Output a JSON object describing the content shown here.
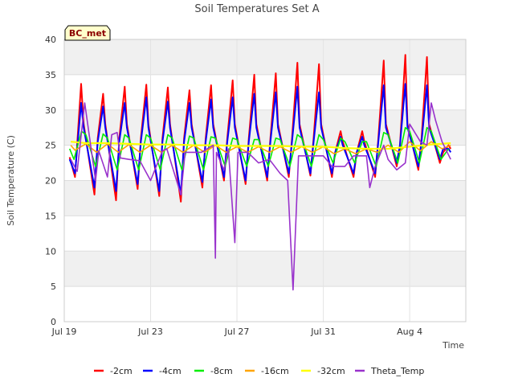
{
  "chart_data": {
    "type": "line",
    "title": "Soil Temperatures Set A",
    "xlabel": "Time",
    "ylabel": "Soil Temperature (C)",
    "badge": "BC_met",
    "x_unit": "days since Jul 19",
    "xlim": [
      0,
      18.6
    ],
    "ylim": [
      0,
      40
    ],
    "yticks": [
      0,
      5,
      10,
      15,
      20,
      25,
      30,
      35,
      40
    ],
    "xticks": [
      {
        "value": 0,
        "label": "Jul 19"
      },
      {
        "value": 4,
        "label": "Jul 23"
      },
      {
        "value": 8,
        "label": "Jul 27"
      },
      {
        "value": 12,
        "label": "Jul 31"
      },
      {
        "value": 16,
        "label": "Aug 4"
      }
    ],
    "legend_position": "bottom",
    "grid": true,
    "band_background": true,
    "series": [
      {
        "name": "-2cm",
        "color": "#ff0000",
        "width": 2.0,
        "x": [
          0.25,
          0.5,
          0.78,
          0.9,
          1.4,
          1.55,
          1.8,
          1.9,
          2.4,
          2.55,
          2.8,
          2.9,
          3.4,
          3.55,
          3.8,
          3.9,
          4.4,
          4.55,
          4.8,
          4.9,
          5.4,
          5.55,
          5.8,
          5.9,
          6.4,
          6.55,
          6.8,
          6.9,
          7.4,
          7.55,
          7.8,
          7.9,
          8.4,
          8.55,
          8.8,
          8.9,
          9.4,
          9.55,
          9.8,
          9.9,
          10.4,
          10.55,
          10.8,
          10.9,
          11.4,
          11.55,
          11.8,
          11.9,
          12.4,
          12.55,
          12.8,
          12.9,
          13.4,
          13.55,
          13.8,
          13.9,
          14.4,
          14.55,
          14.8,
          14.9,
          15.4,
          15.55,
          15.8,
          15.9,
          16.4,
          16.55,
          16.8,
          16.9,
          17.4,
          17.55,
          17.8,
          17.9
        ],
        "y": [
          23.3,
          20.5,
          33.7,
          28,
          18,
          26,
          32.3,
          28,
          17.2,
          26,
          33.3,
          28,
          18.8,
          26,
          33.6,
          28,
          17.8,
          26,
          33.2,
          28,
          17,
          26,
          32.8,
          28,
          19,
          26,
          33.5,
          28,
          20,
          26,
          34.2,
          28,
          19.5,
          26,
          35,
          28,
          20,
          26,
          35.2,
          28,
          20.5,
          26,
          36.7,
          28,
          20.7,
          26,
          36.5,
          28,
          20.5,
          24,
          27,
          25.5,
          20.5,
          24,
          27,
          25.5,
          20.5,
          26,
          37,
          28,
          22,
          25,
          37.8,
          28,
          21.5,
          26,
          37.5,
          28,
          22.5,
          24,
          25,
          24.5
        ]
      },
      {
        "name": "-4cm",
        "color": "#0000ff",
        "width": 2.0,
        "x": [
          0.25,
          0.5,
          0.78,
          0.9,
          1.4,
          1.55,
          1.8,
          1.9,
          2.4,
          2.55,
          2.8,
          2.9,
          3.4,
          3.55,
          3.8,
          3.9,
          4.4,
          4.55,
          4.8,
          4.9,
          5.4,
          5.55,
          5.8,
          5.9,
          6.4,
          6.55,
          6.8,
          6.9,
          7.4,
          7.55,
          7.8,
          7.9,
          8.4,
          8.55,
          8.8,
          8.9,
          9.4,
          9.55,
          9.8,
          9.9,
          10.4,
          10.55,
          10.8,
          10.9,
          11.4,
          11.55,
          11.8,
          11.9,
          12.4,
          12.55,
          12.8,
          12.9,
          13.4,
          13.55,
          13.8,
          13.9,
          14.4,
          14.55,
          14.8,
          14.9,
          15.4,
          15.55,
          15.8,
          15.9,
          16.4,
          16.55,
          16.8,
          16.9,
          17.4,
          17.55,
          17.8,
          17.9
        ],
        "y": [
          23,
          21,
          31,
          27.5,
          19,
          25.5,
          30.5,
          27.5,
          18.5,
          25.5,
          31,
          27.5,
          19.5,
          25.5,
          31.8,
          27.5,
          18.5,
          25.5,
          31.2,
          27.5,
          18,
          25.5,
          31,
          27.5,
          19.8,
          25.5,
          31.5,
          27.5,
          20.5,
          25.5,
          31.8,
          27.5,
          20,
          25.5,
          32.3,
          27.5,
          20.5,
          25.5,
          32.5,
          27.5,
          21,
          25.5,
          33.3,
          27.5,
          21,
          25.5,
          32.5,
          27.5,
          21,
          24,
          26.2,
          25,
          21,
          24,
          26.2,
          25,
          21,
          25.5,
          33.5,
          27.5,
          22.5,
          25,
          33.7,
          27.5,
          22,
          25.5,
          33.5,
          27.5,
          23,
          24.5,
          24.5,
          24
        ]
      },
      {
        "name": "-8cm",
        "color": "#00ee00",
        "width": 1.6,
        "x": [
          0.25,
          0.45,
          0.8,
          1,
          1.45,
          1.8,
          2,
          2.45,
          2.8,
          3,
          3.45,
          3.8,
          4,
          4.45,
          4.8,
          5,
          5.45,
          5.8,
          6,
          6.45,
          6.8,
          7,
          7.45,
          7.8,
          8,
          8.45,
          8.8,
          9,
          9.45,
          9.8,
          10,
          10.45,
          10.8,
          11,
          11.45,
          11.8,
          12,
          12.45,
          12.8,
          13,
          13.45,
          13.8,
          14,
          14.45,
          14.8,
          15,
          15.45,
          15.8,
          16,
          16.45,
          16.8,
          17,
          17.45,
          17.8
        ],
        "y": [
          24.5,
          23,
          27,
          26.5,
          22,
          26.6,
          26,
          21.5,
          26.5,
          26,
          21.5,
          26.5,
          26,
          21.5,
          26.5,
          26,
          21.5,
          26.3,
          26,
          21.5,
          26.2,
          26,
          22,
          26,
          25.8,
          22,
          25.8,
          25.8,
          22,
          26,
          25.8,
          22,
          26.5,
          26,
          22,
          26.5,
          25.8,
          22.5,
          26,
          25.5,
          22.5,
          25.5,
          25.5,
          22,
          26.8,
          26.5,
          22.5,
          27.5,
          27,
          22.5,
          27.5,
          27,
          23,
          24.5
        ]
      },
      {
        "name": "-16cm",
        "color": "#ffa500",
        "width": 1.6,
        "x": [
          0.3,
          0.5,
          1,
          1.5,
          2,
          2.5,
          3,
          3.5,
          4,
          4.5,
          5,
          5.5,
          6,
          6.5,
          7,
          7.5,
          8,
          8.5,
          9,
          9.5,
          10,
          10.5,
          11,
          11.5,
          12,
          12.5,
          13,
          13.5,
          14,
          14.5,
          15,
          15.5,
          16,
          16.5,
          17,
          17.5,
          17.9
        ],
        "y": [
          25,
          24.3,
          25.2,
          24,
          25.2,
          24,
          25.1,
          24,
          25,
          24,
          25,
          24,
          25,
          24,
          25,
          24,
          24.8,
          24,
          24.8,
          24,
          24.8,
          24,
          24.8,
          24,
          24.8,
          23.8,
          24.5,
          23.8,
          24.5,
          24,
          25,
          24,
          25.5,
          24.2,
          25.5,
          24.5,
          25
        ]
      },
      {
        "name": "-32cm",
        "color": "#ffff00",
        "width": 2.2,
        "x": [
          0.3,
          1,
          2,
          3,
          4,
          5,
          6,
          7,
          8,
          9,
          10,
          11,
          12,
          13,
          14,
          15,
          16,
          17,
          17.9
        ],
        "y": [
          25.5,
          25.3,
          25.3,
          25.2,
          25.1,
          25.1,
          25,
          25,
          24.9,
          24.9,
          24.9,
          24.8,
          24.8,
          24.6,
          24.5,
          24.5,
          24.8,
          25.1,
          25.3
        ]
      },
      {
        "name": "Theta_Temp",
        "color": "#9932cc",
        "width": 1.6,
        "x": [
          0.3,
          0.6,
          0.95,
          1.45,
          1.6,
          2,
          2.2,
          2.45,
          2.6,
          3,
          3.5,
          4,
          4.55,
          4.75,
          5.4,
          5.6,
          6.35,
          6.9,
          7,
          7.05,
          7.4,
          7.6,
          7.9,
          8.05,
          8.2,
          8.5,
          9,
          9.5,
          10,
          10.35,
          10.6,
          10.85,
          11,
          11.5,
          12,
          12.4,
          13,
          13.4,
          14,
          14.15,
          14.4,
          14.8,
          15,
          15.4,
          15.8,
          16,
          16.5,
          16.8,
          17,
          17.2,
          17.5,
          17.9
        ],
        "y": [
          23,
          21.3,
          31,
          20,
          24.2,
          20.5,
          26.5,
          26.8,
          23.2,
          23,
          22.8,
          20,
          24.2,
          24.5,
          18,
          24,
          24,
          25,
          9,
          24,
          21.5,
          24.5,
          11.2,
          24,
          24,
          24,
          22.5,
          23,
          21,
          20,
          4.5,
          23.5,
          23.5,
          23.5,
          23.5,
          22,
          22,
          23.5,
          23.5,
          19,
          22,
          25,
          23,
          21.5,
          22.5,
          28,
          25.5,
          25,
          31,
          28.5,
          25.5,
          23
        ]
      }
    ]
  }
}
